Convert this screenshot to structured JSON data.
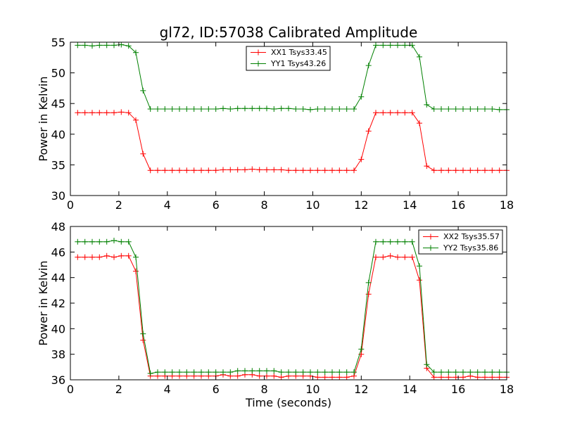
{
  "figure_title": "gl72, ID:57038 Calibrated Amplitude",
  "xlabel": "Time (seconds)",
  "colors": {
    "XX": "#ff0000",
    "YY": "#008000",
    "axes": "#000000",
    "background": "#ffffff"
  },
  "chart_data": [
    {
      "type": "line",
      "title": "gl72, ID:57038 Calibrated Amplitude",
      "xlabel": "",
      "ylabel": "Power in Kelvin",
      "xlim": [
        0,
        18
      ],
      "ylim": [
        30,
        55
      ],
      "xticks": [
        0,
        2,
        4,
        6,
        8,
        10,
        12,
        14,
        16,
        18
      ],
      "yticks": [
        30,
        35,
        40,
        45,
        50,
        55
      ],
      "legend_position": "top-center",
      "grid": false,
      "x": [
        0.3,
        0.6,
        0.9,
        1.2,
        1.5,
        1.8,
        2.1,
        2.4,
        2.7,
        3.0,
        3.3,
        3.6,
        3.9,
        4.2,
        4.5,
        4.8,
        5.1,
        5.4,
        5.7,
        6.0,
        6.3,
        6.6,
        6.9,
        7.2,
        7.5,
        7.8,
        8.1,
        8.4,
        8.7,
        9.0,
        9.3,
        9.6,
        9.9,
        10.2,
        10.5,
        10.8,
        11.1,
        11.4,
        11.7,
        12.0,
        12.3,
        12.6,
        12.9,
        13.2,
        13.5,
        13.8,
        14.1,
        14.4,
        14.7,
        15.0,
        15.3,
        15.6,
        15.9,
        16.2,
        16.5,
        16.8,
        17.1,
        17.4,
        17.7,
        18.0
      ],
      "series": [
        {
          "name": "XX1 Tsys33.45",
          "color": "#ff0000",
          "values": [
            43.5,
            43.5,
            43.5,
            43.5,
            43.5,
            43.5,
            43.6,
            43.5,
            42.3,
            36.8,
            34.1,
            34.1,
            34.1,
            34.1,
            34.1,
            34.1,
            34.1,
            34.1,
            34.1,
            34.1,
            34.2,
            34.2,
            34.2,
            34.2,
            34.3,
            34.2,
            34.2,
            34.2,
            34.2,
            34.1,
            34.1,
            34.1,
            34.1,
            34.1,
            34.1,
            34.1,
            34.1,
            34.1,
            34.1,
            35.9,
            40.5,
            43.5,
            43.5,
            43.5,
            43.5,
            43.5,
            43.5,
            41.8,
            34.8,
            34.1,
            34.1,
            34.1,
            34.1,
            34.1,
            34.1,
            34.1,
            34.1,
            34.1,
            34.1,
            34.1
          ]
        },
        {
          "name": "YY1 Tsys43.26",
          "color": "#008000",
          "values": [
            54.5,
            54.5,
            54.4,
            54.5,
            54.5,
            54.5,
            54.6,
            54.4,
            53.3,
            47.1,
            44.1,
            44.1,
            44.1,
            44.1,
            44.1,
            44.1,
            44.1,
            44.1,
            44.1,
            44.1,
            44.2,
            44.1,
            44.2,
            44.2,
            44.2,
            44.2,
            44.2,
            44.1,
            44.2,
            44.2,
            44.1,
            44.1,
            44.0,
            44.1,
            44.1,
            44.1,
            44.1,
            44.1,
            44.1,
            46.1,
            51.2,
            54.5,
            54.5,
            54.5,
            54.5,
            54.5,
            54.5,
            52.6,
            44.8,
            44.1,
            44.1,
            44.1,
            44.1,
            44.1,
            44.1,
            44.1,
            44.1,
            44.1,
            44.0,
            44.0
          ]
        }
      ]
    },
    {
      "type": "line",
      "title": "",
      "xlabel": "Time (seconds)",
      "ylabel": "Power in Kelvin",
      "xlim": [
        0,
        18
      ],
      "ylim": [
        36,
        48
      ],
      "xticks": [
        0,
        2,
        4,
        6,
        8,
        10,
        12,
        14,
        16,
        18
      ],
      "yticks": [
        36,
        38,
        40,
        42,
        44,
        46,
        48
      ],
      "legend_position": "top-right",
      "grid": false,
      "x": [
        0.3,
        0.6,
        0.9,
        1.2,
        1.5,
        1.8,
        2.1,
        2.4,
        2.7,
        3.0,
        3.3,
        3.6,
        3.9,
        4.2,
        4.5,
        4.8,
        5.1,
        5.4,
        5.7,
        6.0,
        6.3,
        6.6,
        6.9,
        7.2,
        7.5,
        7.8,
        8.1,
        8.4,
        8.7,
        9.0,
        9.3,
        9.6,
        9.9,
        10.2,
        10.5,
        10.8,
        11.1,
        11.4,
        11.7,
        12.0,
        12.3,
        12.6,
        12.9,
        13.2,
        13.5,
        13.8,
        14.1,
        14.4,
        14.7,
        15.0,
        15.3,
        15.6,
        15.9,
        16.2,
        16.5,
        16.8,
        17.1,
        17.4,
        17.7,
        18.0
      ],
      "series": [
        {
          "name": "XX2 Tsys35.57",
          "color": "#ff0000",
          "values": [
            45.6,
            45.6,
            45.6,
            45.6,
            45.7,
            45.6,
            45.7,
            45.7,
            44.5,
            39.1,
            36.3,
            36.3,
            36.3,
            36.3,
            36.3,
            36.3,
            36.3,
            36.3,
            36.3,
            36.3,
            36.4,
            36.3,
            36.3,
            36.4,
            36.4,
            36.3,
            36.3,
            36.3,
            36.2,
            36.3,
            36.3,
            36.3,
            36.3,
            36.2,
            36.2,
            36.2,
            36.2,
            36.2,
            36.3,
            38.0,
            42.7,
            45.6,
            45.6,
            45.7,
            45.6,
            45.6,
            45.6,
            43.8,
            36.9,
            36.2,
            36.2,
            36.2,
            36.2,
            36.2,
            36.3,
            36.2,
            36.2,
            36.2,
            36.2,
            36.2
          ]
        },
        {
          "name": "YY2 Tsys35.86",
          "color": "#008000",
          "values": [
            46.8,
            46.8,
            46.8,
            46.8,
            46.8,
            46.9,
            46.8,
            46.8,
            45.6,
            39.6,
            36.5,
            36.6,
            36.6,
            36.6,
            36.6,
            36.6,
            36.6,
            36.6,
            36.6,
            36.6,
            36.6,
            36.6,
            36.7,
            36.7,
            36.7,
            36.7,
            36.7,
            36.7,
            36.6,
            36.6,
            36.6,
            36.6,
            36.6,
            36.6,
            36.6,
            36.6,
            36.6,
            36.6,
            36.6,
            38.4,
            43.6,
            46.8,
            46.8,
            46.8,
            46.8,
            46.8,
            46.8,
            44.9,
            37.2,
            36.6,
            36.6,
            36.6,
            36.6,
            36.6,
            36.6,
            36.6,
            36.6,
            36.6,
            36.6,
            36.6
          ]
        }
      ]
    }
  ]
}
